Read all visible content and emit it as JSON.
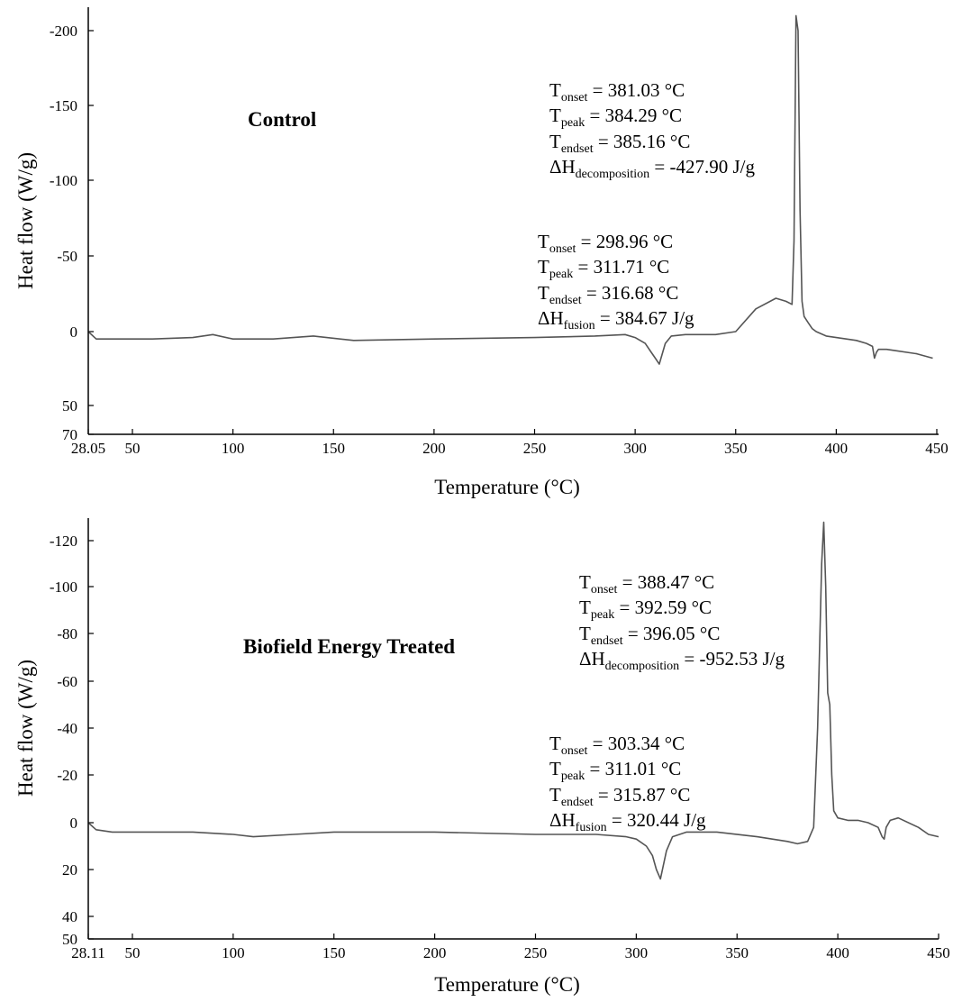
{
  "chart_data": [
    {
      "type": "line",
      "title": "Control",
      "xlabel": "Temperature (°C)",
      "ylabel": "Heat flow (W/g)",
      "xlim": [
        28.05,
        450
      ],
      "ylim": [
        70,
        -220
      ],
      "x_tick_labels": [
        "28.05",
        "50",
        "100",
        "150",
        "200",
        "250",
        "300",
        "350",
        "400",
        "450"
      ],
      "y_tick_labels": [
        "-200",
        "-150",
        "-100",
        "-50",
        "0",
        "50",
        "70"
      ],
      "series": [
        {
          "x": [
            28.05,
            32,
            40,
            60,
            80,
            90,
            100,
            120,
            140,
            160,
            200,
            250,
            280,
            295,
            300,
            305,
            308,
            310,
            312,
            315,
            318,
            325,
            340,
            350,
            360,
            370,
            375,
            378,
            379,
            380,
            381,
            382,
            383,
            384,
            385,
            386,
            388,
            390,
            395,
            400,
            410,
            415,
            418,
            419,
            420,
            421,
            425,
            430,
            440,
            448
          ],
          "y": [
            0,
            5,
            5,
            5,
            4,
            2,
            5,
            5,
            3,
            6,
            5,
            4,
            3,
            2,
            4,
            8,
            14,
            18,
            22,
            8,
            3,
            2,
            2,
            0,
            -15,
            -22,
            -20,
            -18,
            -60,
            -210,
            -200,
            -80,
            -20,
            -10,
            -8,
            -6,
            -2,
            0,
            3,
            4,
            6,
            8,
            10,
            18,
            14,
            12,
            12,
            13,
            15,
            18
          ]
        }
      ],
      "annotations": [
        {
          "label_onset": "T",
          "sub_onset": "onset",
          "value_onset": " = 381.03 °C",
          "label_peak": "T",
          "sub_peak": "peak",
          "value_peak": " = 384.29 °C",
          "label_endset": "T",
          "sub_endset": "endset",
          "value_endset": " = 385.16 °C",
          "label_dh": "ΔH",
          "sub_dh": "decomposition",
          "value_dh": " = -427.90 J/g"
        },
        {
          "label_onset": "T",
          "sub_onset": "onset",
          "value_onset": " = 298.96 °C",
          "label_peak": "T",
          "sub_peak": "peak",
          "value_peak": " = 311.71 °C",
          "label_endset": "T",
          "sub_endset": "endset",
          "value_endset": " = 316.68 °C",
          "label_dh": "ΔH",
          "sub_dh": "fusion",
          "value_dh": " = 384.67 J/g"
        }
      ]
    },
    {
      "type": "line",
      "title": "Biofield Energy Treated",
      "xlabel": "Temperature (°C)",
      "ylabel": "Heat flow (W/g)",
      "xlim": [
        28.11,
        450
      ],
      "ylim": [
        50,
        -130
      ],
      "x_tick_labels": [
        "28.11",
        "50",
        "100",
        "150",
        "200",
        "250",
        "300",
        "350",
        "400",
        "450"
      ],
      "y_tick_labels": [
        "-120",
        "-100",
        "-80",
        "-60",
        "-40",
        "-20",
        "0",
        "20",
        "40",
        "50"
      ],
      "series": [
        {
          "x": [
            28.11,
            32,
            40,
            60,
            80,
            100,
            110,
            130,
            150,
            200,
            250,
            280,
            295,
            300,
            305,
            308,
            310,
            312,
            315,
            318,
            325,
            340,
            360,
            375,
            380,
            385,
            388,
            390,
            392,
            393,
            394,
            395,
            396,
            397,
            398,
            400,
            405,
            410,
            415,
            420,
            422,
            423,
            424,
            426,
            430,
            440,
            445,
            450
          ],
          "y": [
            0,
            3,
            4,
            4,
            4,
            5,
            6,
            5,
            4,
            4,
            5,
            5,
            6,
            7,
            10,
            14,
            20,
            24,
            12,
            6,
            4,
            4,
            6,
            8,
            9,
            8,
            2,
            -40,
            -110,
            -128,
            -100,
            -55,
            -50,
            -20,
            -5,
            -2,
            -1,
            -1,
            0,
            2,
            6,
            7,
            2,
            -1,
            -2,
            2,
            5,
            6
          ]
        }
      ],
      "annotations": [
        {
          "label_onset": "T",
          "sub_onset": "onset",
          "value_onset": " = 388.47 °C",
          "label_peak": "T",
          "sub_peak": "peak",
          "value_peak": " = 392.59 °C",
          "label_endset": "T",
          "sub_endset": "endset",
          "value_endset": " = 396.05 °C",
          "label_dh": "ΔH",
          "sub_dh": "decomposition",
          "value_dh": " = -952.53 J/g"
        },
        {
          "label_onset": "T",
          "sub_onset": "onset",
          "value_onset": " = 303.34 °C",
          "label_peak": "T",
          "sub_peak": "peak",
          "value_peak": " = 311.01 °C",
          "label_endset": "T",
          "sub_endset": "endset",
          "value_endset": " = 315.87 °C",
          "label_dh": "ΔH",
          "sub_dh": "fusion",
          "value_dh": " = 320.44 J/g"
        }
      ]
    }
  ]
}
